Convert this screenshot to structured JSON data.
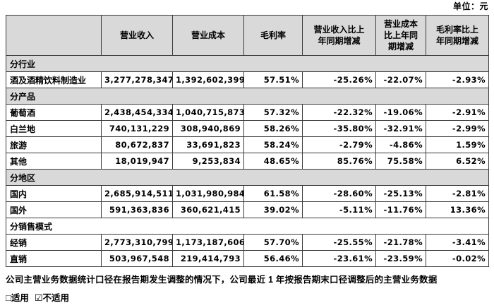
{
  "unit_label": "单位：元",
  "colors": {
    "section_shading": "#d9d9d9",
    "border": "#3a3a3a"
  },
  "table": {
    "columns": {
      "c0": "",
      "c1": "营业收入",
      "c2": "营业成本",
      "c3": "毛利率",
      "c4": "营业收入比上\n年同期增减",
      "c5": "营业成本\n比上年同\n期增减",
      "c6": "毛利率比上\n年同期增减"
    },
    "rows": [
      {
        "type": "section",
        "label": "分行业"
      },
      {
        "type": "data",
        "label": "酒及酒精饮料制造业",
        "revenue": "3,277,278,347",
        "cost": "1,392,602,399",
        "margin": "57.51%",
        "revenue_yoy": "-25.26%",
        "cost_yoy": "-22.07%",
        "margin_yoy": "-2.93%"
      },
      {
        "type": "section",
        "label": "分产品"
      },
      {
        "type": "data",
        "label": "葡萄酒",
        "revenue": "2,438,454,334",
        "cost": "1,040,715,873",
        "margin": "57.32%",
        "revenue_yoy": "-22.32%",
        "cost_yoy": "-19.06%",
        "margin_yoy": "-2.91%"
      },
      {
        "type": "data",
        "label": "白兰地",
        "revenue": "740,131,229",
        "cost": "308,940,869",
        "margin": "58.26%",
        "revenue_yoy": "-35.80%",
        "cost_yoy": "-32.91%",
        "margin_yoy": "-2.99%"
      },
      {
        "type": "data",
        "label": "旅游",
        "revenue": "80,672,837",
        "cost": "33,691,823",
        "margin": "58.24%",
        "revenue_yoy": "-2.79%",
        "cost_yoy": "-4.86%",
        "margin_yoy": "1.59%"
      },
      {
        "type": "data",
        "label": "其他",
        "revenue": "18,019,947",
        "cost": "9,253,834",
        "margin": "48.65%",
        "revenue_yoy": "85.76%",
        "cost_yoy": "75.58%",
        "margin_yoy": "6.52%"
      },
      {
        "type": "section",
        "label": "分地区"
      },
      {
        "type": "data",
        "label": "国内",
        "revenue": "2,685,914,511",
        "cost": "1,031,980,984",
        "margin": "61.58%",
        "revenue_yoy": "-28.60%",
        "cost_yoy": "-25.13%",
        "margin_yoy": "-2.81%"
      },
      {
        "type": "data",
        "label": "国外",
        "revenue": "591,363,836",
        "cost": "360,621,415",
        "margin": "39.02%",
        "revenue_yoy": "-5.11%",
        "cost_yoy": "-11.76%",
        "margin_yoy": "13.36%"
      },
      {
        "type": "section",
        "label": "分销售模式"
      },
      {
        "type": "data",
        "label": "经销",
        "revenue": "2,773,310,799",
        "cost": "1,173,187,606",
        "margin": "57.70%",
        "revenue_yoy": "-25.55%",
        "cost_yoy": "-21.78%",
        "margin_yoy": "-3.41%"
      },
      {
        "type": "data",
        "label": "直销",
        "revenue": "503,967,548",
        "cost": "219,414,793",
        "margin": "56.46%",
        "revenue_yoy": "-23.61%",
        "cost_yoy": "-23.59%",
        "margin_yoy": "-0.02%"
      }
    ]
  },
  "footer": {
    "note": "公司主营业务数据统计口径在报告期发生调整的情况下，公司最近 1 年按报告期末口径调整后的主营业务数据",
    "checkbox_unchecked": "□",
    "applicable_label": "适用",
    "checkbox_checked": "☑",
    "not_applicable_label": "不适用"
  }
}
